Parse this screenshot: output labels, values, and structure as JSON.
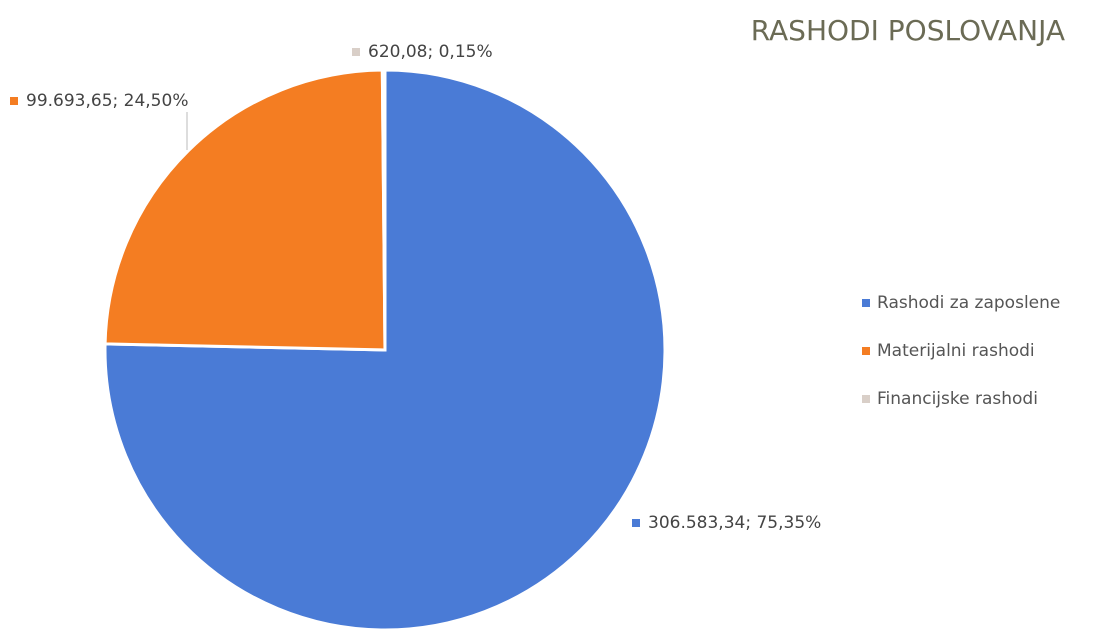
{
  "chart_data": {
    "type": "pie",
    "title": "RASHODI POSLOVANJA",
    "categories": [
      "Rashodi za zaposlene",
      "Materijalni rashodi",
      "Financijske rashodi"
    ],
    "values": [
      306583.34,
      99693.65,
      620.08
    ],
    "value_labels": [
      "306.583,34; 75,35%",
      "99.693,65; 24,50%",
      "620,08; 0,15%"
    ],
    "colors": [
      "#4a7bd6",
      "#f47d22",
      "#d9cfc8"
    ],
    "legend": "right"
  }
}
